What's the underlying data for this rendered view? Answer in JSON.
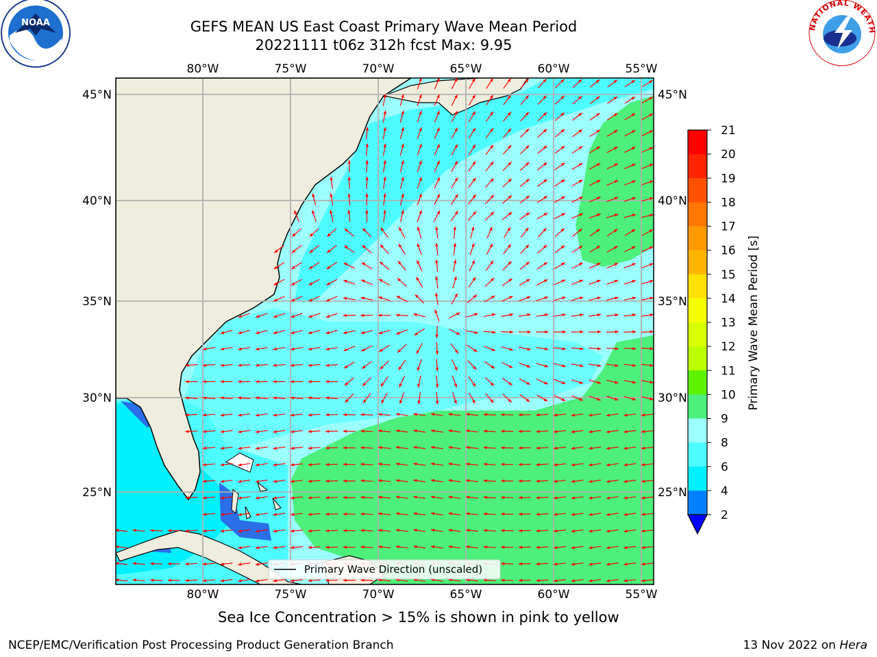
{
  "title_line1": "GEFS MEAN US East Coast Primary Wave Mean Period",
  "title_line2": "20221111 t06z 312h fcst   Max: 9.95",
  "caption": "Sea Ice Concentration > 15% is shown in pink to yellow",
  "footer_left": "NCEP/EMC/Verification Post Processing Product Generation Branch",
  "footer_date": "13 Nov 2022 on ",
  "footer_host": "Hera",
  "logos": {
    "left": "NOAA",
    "right": "NATIONAL WEATHER SERVICE"
  },
  "map": {
    "lon_labels": [
      "80°W",
      "75°W",
      "70°W",
      "65°W",
      "60°W",
      "55°W"
    ],
    "lat_labels": [
      "45°N",
      "40°N",
      "35°N",
      "30°N",
      "25°N"
    ],
    "legend_label": "Primary Wave Direction (unscaled)",
    "colors": {
      "land": "#efeddd",
      "arrow": "#ff0000",
      "grid": "#b0b0b0"
    }
  },
  "colorbar": {
    "label": "Primary Wave Mean Period [s]",
    "ticks": [
      "21",
      "20",
      "19",
      "18",
      "17",
      "16",
      "15",
      "14",
      "13",
      "12",
      "11",
      "10",
      "9",
      "8",
      "6",
      "4",
      "2"
    ],
    "colors": [
      "#ff0000",
      "#ff2400",
      "#ff5000",
      "#ff7800",
      "#ff9a00",
      "#ffb400",
      "#ffd400",
      "#fff000",
      "#f6ff00",
      "#d8ff00",
      "#bbff00",
      "#5cf200",
      "#00e600",
      "#4cf07a",
      "#9cfffe",
      "#4dfcff",
      "#00f0ff",
      "#0080ff",
      "#0000ff"
    ]
  },
  "chart_data": {
    "type": "heatmap",
    "title": "GEFS MEAN US East Coast Primary Wave Mean Period",
    "subtitle": "20221111 t06z 312h fcst   Max: 9.95",
    "variable": "Primary Wave Mean Period",
    "units": "s",
    "max_value": 9.95,
    "lon_range": [
      -85,
      -54.5
    ],
    "lat_range": [
      20.5,
      46
    ],
    "colorbar_levels": [
      2,
      4,
      6,
      8,
      9,
      10,
      11,
      12,
      13,
      14,
      15,
      16,
      17,
      18,
      19,
      20,
      21
    ]
  }
}
